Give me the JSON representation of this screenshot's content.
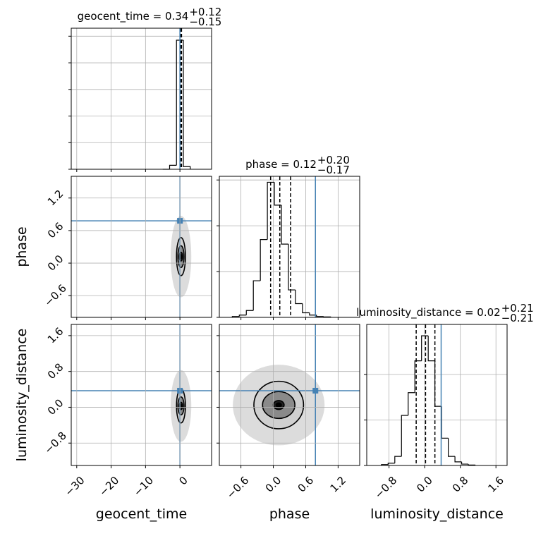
{
  "chart_data": {
    "type": "corner",
    "parameters": [
      {
        "label": "geocent_time",
        "lim": [
          -31.6,
          9.2
        ],
        "ticks": [
          {
            "value": -30,
            "label": "−30"
          },
          {
            "value": -20,
            "label": "−20"
          },
          {
            "value": -10,
            "label": "−10"
          },
          0
        ],
        "truth": 0,
        "title": "geocent_time = 0.34",
        "title_plus": "+0.12",
        "title_minus": "−0.15",
        "quantiles": [
          0.19,
          0.34,
          0.46
        ],
        "hist": {
          "bins": [
            -5,
            -3,
            -1,
            1,
            3
          ],
          "counts": [
            0,
            3,
            97,
            2
          ],
          "ylim": [
            0,
            106
          ],
          "yticks": [
            0,
            20,
            40,
            60,
            80,
            100
          ]
        }
      },
      {
        "label": "phase",
        "lim": [
          -1.0,
          1.6
        ],
        "ticks": [
          {
            "value": -0.6,
            "label": "−0.6"
          },
          {
            "value": 0,
            "label": "0.0"
          },
          0.6,
          1.2
        ],
        "truth": 0.78,
        "title": "phase = 0.12",
        "title_plus": "+0.20",
        "title_minus": "−0.17",
        "quantiles": [
          -0.05,
          0.12,
          0.32
        ],
        "hist": {
          "bins": [
            -0.76,
            -0.63,
            -0.5,
            -0.37,
            -0.24,
            -0.11,
            0.02,
            0.15,
            0.28,
            0.41,
            0.54,
            0.67,
            0.8,
            0.93,
            1.06
          ],
          "counts": [
            0.02,
            0.05,
            0.15,
            0.8,
            1.7,
            2.95,
            2.45,
            1.6,
            0.6,
            0.3,
            0.1,
            0.05,
            0.02,
            0.01
          ],
          "ylim": [
            0,
            3.08
          ],
          "yticks": [
            0,
            1,
            2,
            3
          ]
        }
      },
      {
        "label": "luminosity_distance",
        "lim": [
          -1.3,
          1.85
        ],
        "ticks": [
          {
            "value": -0.8,
            "label": "−0.8"
          },
          {
            "value": 0,
            "label": "0.0"
          },
          0.8,
          1.6
        ],
        "truth": 0.37,
        "title": "luminosity_distance = 0.02",
        "title_plus": "+0.21",
        "title_minus": "−0.21",
        "quantiles": [
          -0.19,
          0.02,
          0.23
        ],
        "hist": {
          "bins": [
            -0.97,
            -0.82,
            -0.67,
            -0.52,
            -0.37,
            -0.22,
            -0.07,
            0.08,
            0.23,
            0.38,
            0.53,
            0.68,
            0.83,
            0.98,
            1.13
          ],
          "counts": [
            0.02,
            0.05,
            0.2,
            1.1,
            1.6,
            2.3,
            2.85,
            2.3,
            1.3,
            0.6,
            0.2,
            0.08,
            0.03,
            0.01
          ],
          "ylim": [
            0,
            3.1
          ],
          "yticks": [
            0,
            1,
            2
          ]
        }
      }
    ],
    "panels2d": [
      {
        "x": 0,
        "y": 1,
        "center": [
          0.3,
          0.12
        ],
        "extent": [
          3,
          0.75
        ],
        "contours": [
          [
            0.5,
            0.08
          ],
          [
            0.9,
            0.2
          ],
          [
            1.3,
            0.35
          ]
        ]
      },
      {
        "x": 0,
        "y": 2,
        "center": [
          0.3,
          0.03
        ],
        "extent": [
          3,
          0.8
        ],
        "contours": [
          [
            0.5,
            0.08
          ],
          [
            0.9,
            0.2
          ],
          [
            1.3,
            0.38
          ]
        ]
      },
      {
        "x": 1,
        "y": 2,
        "center": [
          0.1,
          0.05
        ],
        "extent": [
          0.85,
          0.9
        ],
        "contours": [
          [
            0.1,
            0.1
          ],
          [
            0.3,
            0.3
          ],
          [
            0.46,
            0.53
          ]
        ]
      }
    ],
    "truth_color": "#4682b4"
  }
}
